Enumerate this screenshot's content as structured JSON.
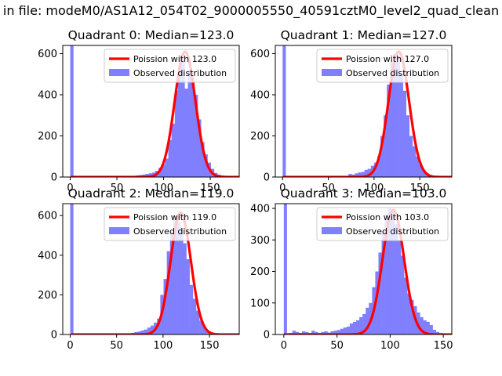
{
  "figure": {
    "suptitle": "in file: modeM0/AS1A12_054T02_9000005550_40591cztM0_level2_quad_clean"
  },
  "chart_data": [
    {
      "type": "bar",
      "title": "Quadrant 0: Median=123.0",
      "xlim": [
        -8,
        181
      ],
      "ylim": [
        0,
        640
      ],
      "xticks": [
        0,
        50,
        100,
        150
      ],
      "yticks": [
        0,
        200,
        400,
        600
      ],
      "legend_position": "top-right",
      "series": [
        {
          "name": "Poission with 123.0",
          "kind": "line",
          "color": "#ff0000",
          "mean": 123.0,
          "peak": 610
        },
        {
          "name": "Observed distribution",
          "kind": "histogram",
          "color": "#8080ff",
          "bin_width": 3.5,
          "spike": {
            "x": 0,
            "value": 640
          },
          "bins_x": [
            70,
            73.5,
            77,
            80.5,
            84,
            87.5,
            91,
            94.5,
            98,
            101.5,
            105,
            108.5,
            112,
            115.5,
            119,
            122.5,
            126,
            129.5,
            133,
            136.5,
            140,
            143.5,
            147,
            150.5,
            154,
            157.5,
            161,
            164.5
          ],
          "values": [
            8,
            10,
            12,
            15,
            18,
            22,
            30,
            45,
            60,
            90,
            180,
            260,
            420,
            540,
            580,
            430,
            520,
            480,
            400,
            280,
            170,
            110,
            70,
            40,
            20,
            12,
            8,
            5
          ]
        }
      ]
    },
    {
      "type": "bar",
      "title": "Quadrant 1: Median=127.0",
      "xlim": [
        -8,
        185
      ],
      "ylim": [
        0,
        640
      ],
      "xticks": [
        0,
        50,
        100,
        150
      ],
      "yticks": [
        0,
        200,
        400,
        600
      ],
      "legend_position": "top-right",
      "series": [
        {
          "name": "Poission with 127.0",
          "kind": "line",
          "color": "#ff0000",
          "mean": 127.0,
          "peak": 610
        },
        {
          "name": "Observed distribution",
          "kind": "histogram",
          "color": "#8080ff",
          "bin_width": 3.5,
          "spike": {
            "x": 0,
            "value": 640
          },
          "bins_x": [
            72,
            75.5,
            79,
            82.5,
            86,
            89.5,
            93,
            96.5,
            100,
            103.5,
            107,
            110.5,
            114,
            117.5,
            121,
            124.5,
            128,
            131.5,
            135,
            138.5,
            142,
            145.5,
            149,
            152.5,
            156,
            159.5,
            163
          ],
          "values": [
            15,
            12,
            18,
            22,
            25,
            35,
            40,
            55,
            70,
            100,
            200,
            300,
            450,
            560,
            600,
            590,
            500,
            420,
            300,
            200,
            150,
            100,
            60,
            35,
            20,
            10,
            5
          ]
        }
      ]
    },
    {
      "type": "bar",
      "title": "Quadrant 2: Median=119.0",
      "xlim": [
        -8,
        182
      ],
      "ylim": [
        0,
        660
      ],
      "xticks": [
        0,
        50,
        100,
        150
      ],
      "yticks": [
        0,
        200,
        400,
        600
      ],
      "legend_position": "top-right",
      "series": [
        {
          "name": "Poission with 119.0",
          "kind": "line",
          "color": "#ff0000",
          "mean": 119.0,
          "peak": 615
        },
        {
          "name": "Observed distribution",
          "kind": "histogram",
          "color": "#8080ff",
          "bin_width": 3.5,
          "spike": {
            "x": 0,
            "value": 660
          },
          "bins_x": [
            62,
            65.5,
            69,
            72.5,
            76,
            79.5,
            83,
            86.5,
            90,
            93.5,
            97,
            100.5,
            104,
            107.5,
            111,
            114.5,
            118,
            121.5,
            125,
            128.5,
            132,
            135.5,
            139,
            142.5,
            146,
            149.5,
            153,
            156.5
          ],
          "values": [
            5,
            8,
            12,
            15,
            20,
            25,
            35,
            45,
            60,
            80,
            200,
            280,
            420,
            520,
            600,
            570,
            540,
            460,
            380,
            250,
            180,
            120,
            70,
            40,
            20,
            10,
            6,
            3
          ]
        }
      ]
    },
    {
      "type": "bar",
      "title": "Quadrant 3: Median=103.0",
      "xlim": [
        -8,
        158
      ],
      "ylim": [
        0,
        415
      ],
      "xticks": [
        0,
        50,
        100,
        150
      ],
      "yticks": [
        0,
        100,
        200,
        300,
        400
      ],
      "legend_position": "top-right",
      "series": [
        {
          "name": "Poission with 103.0",
          "kind": "line",
          "color": "#ff0000",
          "mean": 103.0,
          "peak": 395
        },
        {
          "name": "Observed distribution",
          "kind": "histogram",
          "color": "#8080ff",
          "bin_width": 3,
          "spike": {
            "x": 0,
            "value": 415
          },
          "bins_x": [
            5,
            8,
            11,
            14,
            17,
            20,
            23,
            26,
            29,
            32,
            35,
            38,
            41,
            44,
            47,
            50,
            53,
            56,
            59,
            62,
            65,
            68,
            71,
            74,
            77,
            80,
            83,
            86,
            89,
            92,
            95,
            98,
            101,
            104,
            107,
            110,
            113,
            116,
            119,
            122,
            125,
            128,
            131,
            134,
            137,
            140,
            143,
            146
          ],
          "values": [
            5,
            12,
            8,
            5,
            10,
            8,
            5,
            12,
            8,
            5,
            8,
            10,
            6,
            10,
            12,
            14,
            18,
            22,
            25,
            35,
            40,
            45,
            55,
            65,
            85,
            100,
            150,
            200,
            260,
            330,
            380,
            400,
            390,
            350,
            300,
            250,
            180,
            130,
            110,
            90,
            70,
            55,
            45,
            40,
            30,
            15,
            8,
            5
          ]
        }
      ]
    }
  ]
}
